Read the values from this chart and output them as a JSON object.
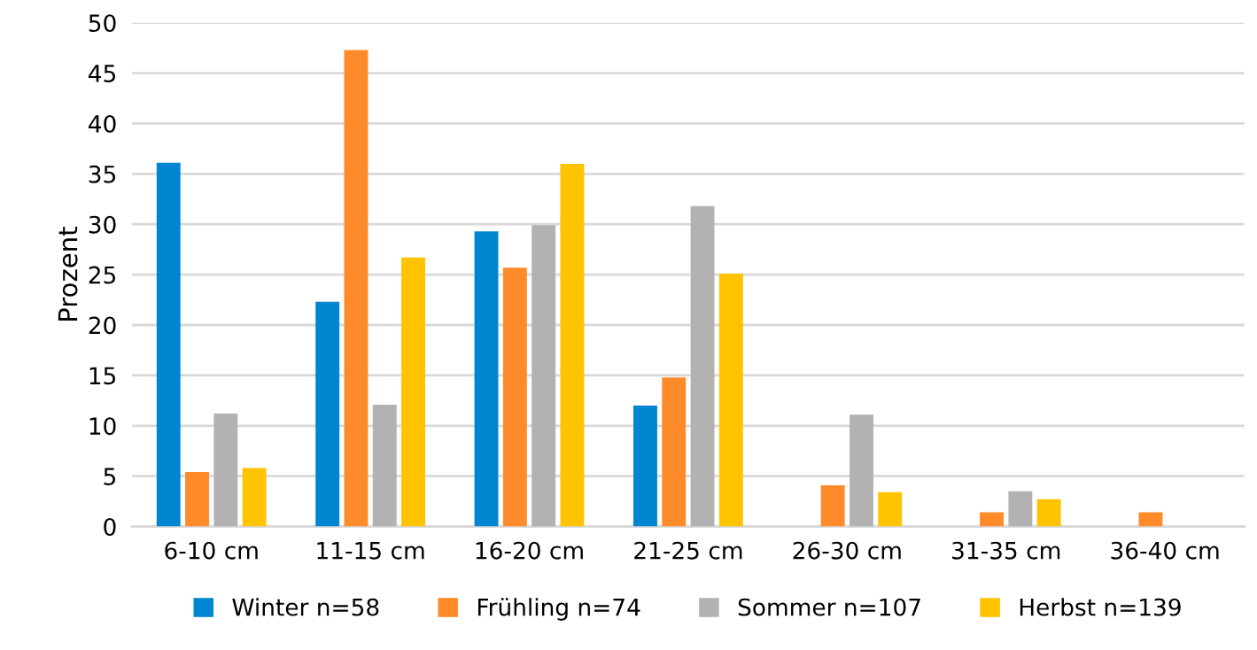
{
  "chart_data": {
    "type": "bar",
    "ylabel": "Prozent",
    "categories": [
      "6-10 cm",
      "11-15 cm",
      "16-20 cm",
      "21-25 cm",
      "26-30 cm",
      "31-35 cm",
      "36-40 cm"
    ],
    "series": [
      {
        "name": "Winter n=58",
        "color": "#0086d1",
        "values": [
          36.1,
          22.3,
          29.3,
          12.0,
          0,
          0,
          0
        ]
      },
      {
        "name": "Frühling n=74",
        "color": "#ff8a2a",
        "values": [
          5.4,
          47.3,
          25.7,
          14.8,
          4.1,
          1.4,
          1.4
        ]
      },
      {
        "name": "Sommer n=107",
        "color": "#b2b2b2",
        "values": [
          11.2,
          12.1,
          29.9,
          31.8,
          11.1,
          3.5,
          0
        ]
      },
      {
        "name": "Herbst n=139",
        "color": "#ffc300",
        "values": [
          5.8,
          26.7,
          36.0,
          25.1,
          3.4,
          2.7,
          0
        ]
      }
    ],
    "ylim": [
      0,
      50
    ],
    "yticks": [
      0,
      5,
      10,
      15,
      20,
      25,
      30,
      35,
      40,
      45,
      50
    ],
    "grid": "y",
    "legend": "bottom"
  }
}
